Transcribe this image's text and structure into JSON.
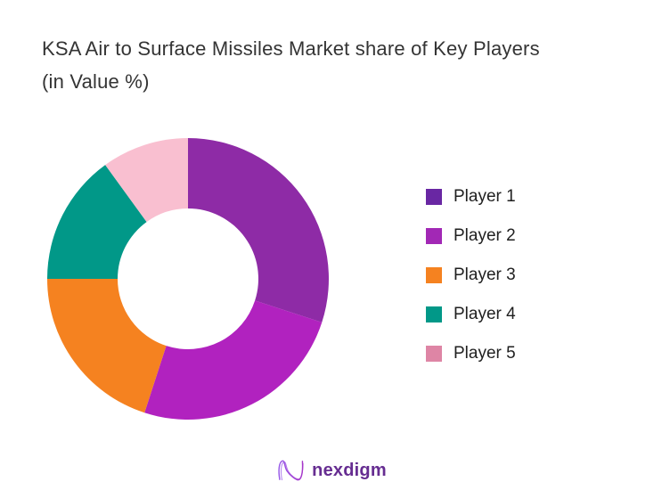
{
  "page": {
    "background": "#FFFFFF"
  },
  "title": {
    "text": "KSA Air to Surface Missiles Market share of Key Players (in Value %)"
  },
  "chart_data": {
    "type": "pie",
    "variant": "donut",
    "title": "KSA Air to Surface Missiles Market share of Key Players (in Value %)",
    "categories": [
      "Player 1",
      "Player 2",
      "Player 3",
      "Player 4",
      "Player 5"
    ],
    "values": [
      30,
      25,
      20,
      15,
      10
    ],
    "unit": "% of market value",
    "colors": [
      "#8E2BA6",
      "#B122BF",
      "#F58220",
      "#019888",
      "#F9BFD0"
    ],
    "start_angle_deg": 0,
    "direction": "clockwise",
    "inner_radius_ratio": 0.5,
    "legend_position": "right",
    "data_labels": false
  },
  "legend": {
    "items": [
      {
        "label": "Player 1",
        "color": "#6927A3"
      },
      {
        "label": "Player 2",
        "color": "#A228B5"
      },
      {
        "label": "Player 3",
        "color": "#F58220"
      },
      {
        "label": "Player 4",
        "color": "#019888"
      },
      {
        "label": "Player 5",
        "color": "#DE85A5"
      }
    ]
  },
  "footer": {
    "brand_name": "nexdigm",
    "brand_color": "#662D91",
    "logo_icon": "nexdigm-wave-n-icon",
    "logo_gradient": [
      "#9657E8",
      "#A636C9"
    ]
  }
}
